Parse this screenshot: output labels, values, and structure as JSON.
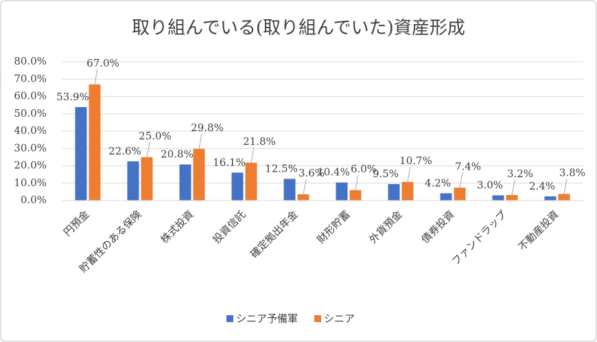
{
  "chart_data": {
    "type": "bar",
    "title": "取り組んでいる(取り組んでいた)資産形成",
    "categories": [
      "円預金",
      "貯蓄性のある保険",
      "株式投資",
      "投資信託",
      "確定拠出年金",
      "財形貯蓄",
      "外貨預金",
      "債券投資",
      "ファンドラップ",
      "不動産投資"
    ],
    "series": [
      {
        "name": "シニア予備軍",
        "color": "#4472c4",
        "values": [
          53.9,
          22.6,
          20.8,
          16.1,
          12.5,
          10.4,
          9.5,
          4.2,
          3.0,
          2.4
        ],
        "value_labels": [
          "53.9%",
          "22.6%",
          "20.8%",
          "16.1%",
          "12.5%",
          "10.4%",
          "9.5%",
          "4.2%",
          "3.0%",
          "2.4%"
        ]
      },
      {
        "name": "シニア",
        "color": "#ed7d31",
        "values": [
          67.0,
          25.0,
          29.8,
          21.8,
          3.6,
          6.0,
          10.7,
          7.4,
          3.2,
          3.8
        ],
        "value_labels": [
          "67.0%",
          "25.0%",
          "29.8%",
          "21.8%",
          "3.6%",
          "6.0%",
          "10.7%",
          "7.4%",
          "3.2%",
          "3.8%"
        ]
      }
    ],
    "ylim": [
      0,
      80
    ],
    "yticks": [
      {
        "value": 0,
        "label": "0.0%"
      },
      {
        "value": 10,
        "label": "10.0%"
      },
      {
        "value": 20,
        "label": "20.0%"
      },
      {
        "value": 30,
        "label": "30.0%"
      },
      {
        "value": 40,
        "label": "40.0%"
      },
      {
        "value": 50,
        "label": "50.0%"
      },
      {
        "value": 60,
        "label": "60.0%"
      },
      {
        "value": 70,
        "label": "70.0%"
      },
      {
        "value": 80,
        "label": "80.0%"
      }
    ],
    "grid": true,
    "legend": "bottom"
  }
}
